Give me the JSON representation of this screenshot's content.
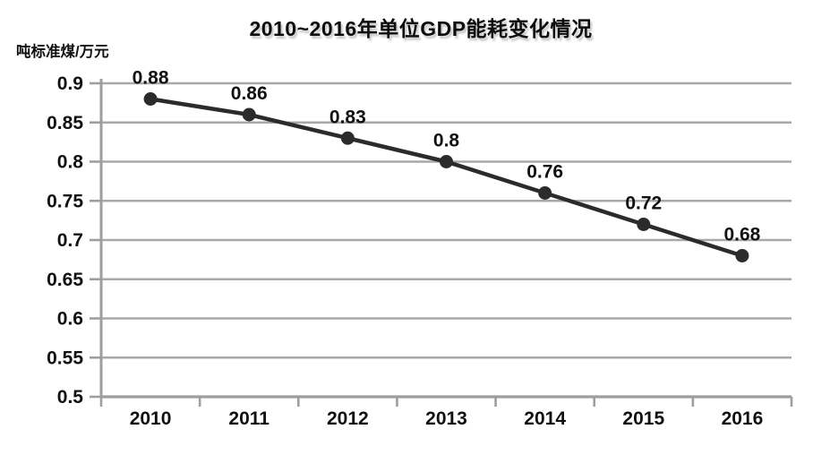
{
  "chart_data": {
    "type": "line",
    "title": "2010~2016年单位GDP能耗变化情况",
    "ylabel": "吨标准煤/万元",
    "xlabel": "",
    "categories": [
      "2010",
      "2011",
      "2012",
      "2013",
      "2014",
      "2015",
      "2016"
    ],
    "values": [
      0.88,
      0.86,
      0.83,
      0.8,
      0.76,
      0.72,
      0.68
    ],
    "point_labels": [
      "0.88",
      "0.86",
      "0.83",
      "0.8",
      "0.76",
      "0.72",
      "0.68"
    ],
    "ylim": [
      0.5,
      0.9
    ],
    "y_tick_values": [
      0.9,
      0.85,
      0.8,
      0.75,
      0.7,
      0.65,
      0.6,
      0.55,
      0.5
    ],
    "y_tick_labels": [
      "0.9",
      "0.85",
      "0.8",
      "0.75",
      "0.7",
      "0.65",
      "0.6",
      "0.55",
      "0.5"
    ],
    "grid": "horizontal",
    "legend": "none",
    "colors": {
      "line": "#2b2b2b",
      "marker": "#2b2b2b",
      "grid": "#a8a8a8",
      "axis": "#9e9e9e",
      "text": "#111111",
      "background": "#ffffff"
    }
  }
}
